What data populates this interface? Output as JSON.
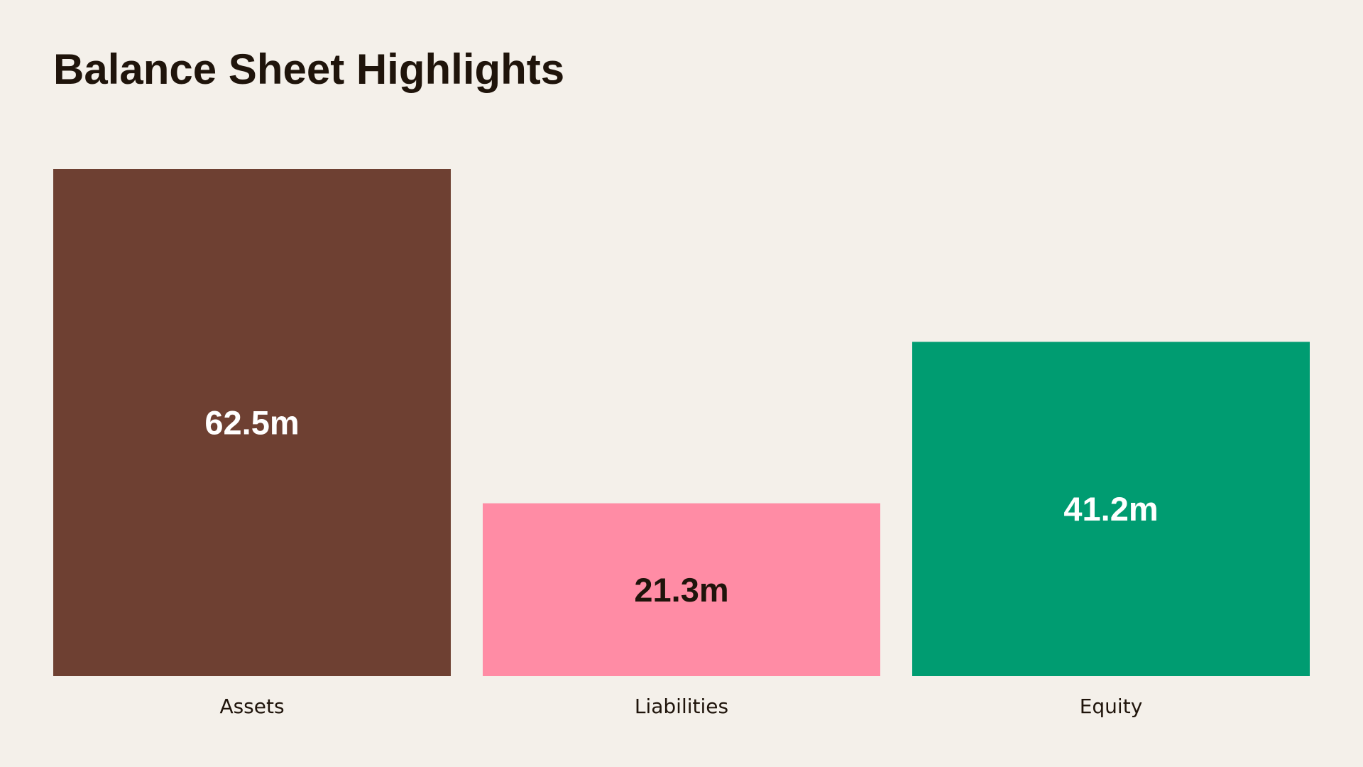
{
  "chart_data": {
    "type": "bar",
    "title": "Balance Sheet Highlights",
    "categories": [
      "Assets",
      "Liabilities",
      "Equity"
    ],
    "values": [
      62.5,
      21.3,
      41.2
    ],
    "value_labels": [
      "62.5m",
      "21.3m",
      "41.2m"
    ],
    "unit": "m",
    "colors": [
      "#6E4032",
      "#FF8CA5",
      "#009C71"
    ],
    "label_colors": [
      "#FFFFFF",
      "#1F140B",
      "#FFFFFF"
    ],
    "ylim": [
      0,
      62.5
    ],
    "grid": false,
    "legend": "none",
    "xlabel": "",
    "ylabel": ""
  }
}
